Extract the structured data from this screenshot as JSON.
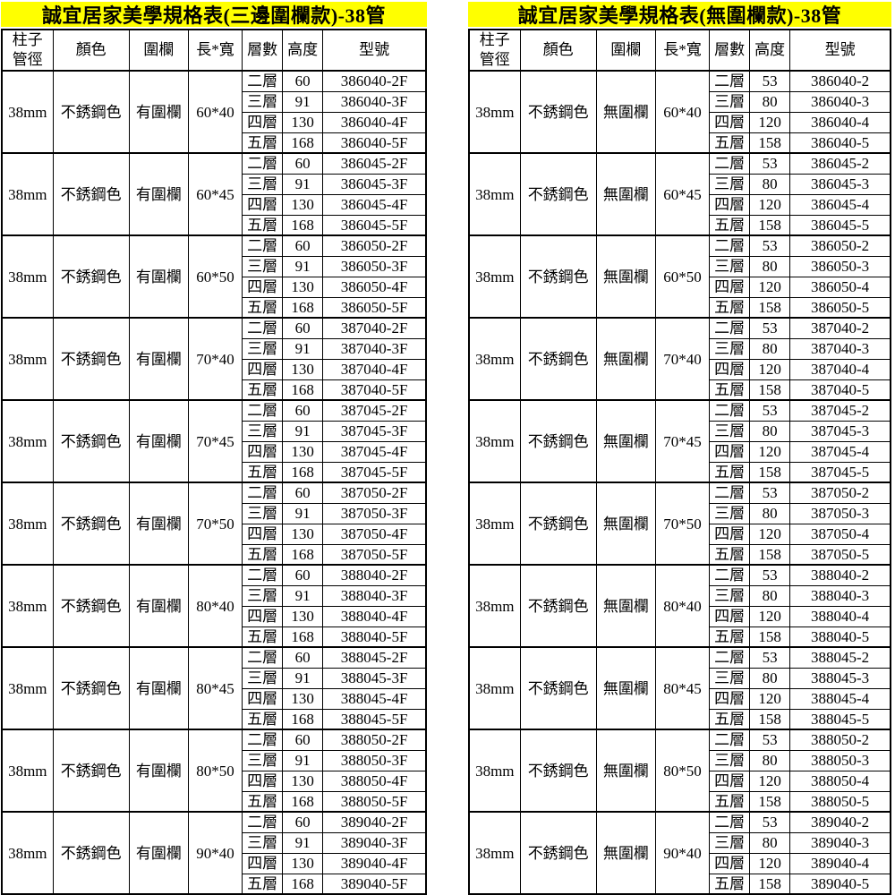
{
  "colors": {
    "title_bg": "#ffff00",
    "border": "#000000",
    "text": "#000000",
    "page_bg": "#ffffff"
  },
  "tables": [
    {
      "title": "誠宜居家美學規格表(三邊圍欄款)-38管",
      "headers": [
        "柱子管徑",
        "顏色",
        "圍欄",
        "長*寬",
        "層數",
        "高度",
        "型號"
      ],
      "groups": [
        {
          "pipe": "38mm",
          "color": "不銹鋼色",
          "fence": "有圍欄",
          "size": "60*40",
          "rows": [
            {
              "layers": "二層",
              "height": "60",
              "model": "386040-2F"
            },
            {
              "layers": "三層",
              "height": "91",
              "model": "386040-3F"
            },
            {
              "layers": "四層",
              "height": "130",
              "model": "386040-4F"
            },
            {
              "layers": "五層",
              "height": "168",
              "model": "386040-5F"
            }
          ]
        },
        {
          "pipe": "38mm",
          "color": "不銹鋼色",
          "fence": "有圍欄",
          "size": "60*45",
          "rows": [
            {
              "layers": "二層",
              "height": "60",
              "model": "386045-2F"
            },
            {
              "layers": "三層",
              "height": "91",
              "model": "386045-3F"
            },
            {
              "layers": "四層",
              "height": "130",
              "model": "386045-4F"
            },
            {
              "layers": "五層",
              "height": "168",
              "model": "386045-5F"
            }
          ]
        },
        {
          "pipe": "38mm",
          "color": "不銹鋼色",
          "fence": "有圍欄",
          "size": "60*50",
          "rows": [
            {
              "layers": "二層",
              "height": "60",
              "model": "386050-2F"
            },
            {
              "layers": "三層",
              "height": "91",
              "model": "386050-3F"
            },
            {
              "layers": "四層",
              "height": "130",
              "model": "386050-4F"
            },
            {
              "layers": "五層",
              "height": "168",
              "model": "386050-5F"
            }
          ]
        },
        {
          "pipe": "38mm",
          "color": "不銹鋼色",
          "fence": "有圍欄",
          "size": "70*40",
          "rows": [
            {
              "layers": "二層",
              "height": "60",
              "model": "387040-2F"
            },
            {
              "layers": "三層",
              "height": "91",
              "model": "387040-3F"
            },
            {
              "layers": "四層",
              "height": "130",
              "model": "387040-4F"
            },
            {
              "layers": "五層",
              "height": "168",
              "model": "387040-5F"
            }
          ]
        },
        {
          "pipe": "38mm",
          "color": "不銹鋼色",
          "fence": "有圍欄",
          "size": "70*45",
          "rows": [
            {
              "layers": "二層",
              "height": "60",
              "model": "387045-2F"
            },
            {
              "layers": "三層",
              "height": "91",
              "model": "387045-3F"
            },
            {
              "layers": "四層",
              "height": "130",
              "model": "387045-4F"
            },
            {
              "layers": "五層",
              "height": "168",
              "model": "387045-5F"
            }
          ]
        },
        {
          "pipe": "38mm",
          "color": "不銹鋼色",
          "fence": "有圍欄",
          "size": "70*50",
          "rows": [
            {
              "layers": "二層",
              "height": "60",
              "model": "387050-2F"
            },
            {
              "layers": "三層",
              "height": "91",
              "model": "387050-3F"
            },
            {
              "layers": "四層",
              "height": "130",
              "model": "387050-4F"
            },
            {
              "layers": "五層",
              "height": "168",
              "model": "387050-5F"
            }
          ]
        },
        {
          "pipe": "38mm",
          "color": "不銹鋼色",
          "fence": "有圍欄",
          "size": "80*40",
          "rows": [
            {
              "layers": "二層",
              "height": "60",
              "model": "388040-2F"
            },
            {
              "layers": "三層",
              "height": "91",
              "model": "388040-3F"
            },
            {
              "layers": "四層",
              "height": "130",
              "model": "388040-4F"
            },
            {
              "layers": "五層",
              "height": "168",
              "model": "388040-5F"
            }
          ]
        },
        {
          "pipe": "38mm",
          "color": "不銹鋼色",
          "fence": "有圍欄",
          "size": "80*45",
          "rows": [
            {
              "layers": "二層",
              "height": "60",
              "model": "388045-2F"
            },
            {
              "layers": "三層",
              "height": "91",
              "model": "388045-3F"
            },
            {
              "layers": "四層",
              "height": "130",
              "model": "388045-4F"
            },
            {
              "layers": "五層",
              "height": "168",
              "model": "388045-5F"
            }
          ]
        },
        {
          "pipe": "38mm",
          "color": "不銹鋼色",
          "fence": "有圍欄",
          "size": "80*50",
          "rows": [
            {
              "layers": "二層",
              "height": "60",
              "model": "388050-2F"
            },
            {
              "layers": "三層",
              "height": "91",
              "model": "388050-3F"
            },
            {
              "layers": "四層",
              "height": "130",
              "model": "388050-4F"
            },
            {
              "layers": "五層",
              "height": "168",
              "model": "388050-5F"
            }
          ]
        },
        {
          "pipe": "38mm",
          "color": "不銹鋼色",
          "fence": "有圍欄",
          "size": "90*40",
          "rows": [
            {
              "layers": "二層",
              "height": "60",
              "model": "389040-2F"
            },
            {
              "layers": "三層",
              "height": "91",
              "model": "389040-3F"
            },
            {
              "layers": "四層",
              "height": "130",
              "model": "389040-4F"
            },
            {
              "layers": "五層",
              "height": "168",
              "model": "389040-5F"
            }
          ]
        }
      ]
    },
    {
      "title": "誠宜居家美學規格表(無圍欄款)-38管",
      "headers": [
        "柱子管徑",
        "顏色",
        "圍欄",
        "長*寬",
        "層數",
        "高度",
        "型號"
      ],
      "groups": [
        {
          "pipe": "38mm",
          "color": "不銹鋼色",
          "fence": "無圍欄",
          "size": "60*40",
          "rows": [
            {
              "layers": "二層",
              "height": "53",
              "model": "386040-2"
            },
            {
              "layers": "三層",
              "height": "80",
              "model": "386040-3"
            },
            {
              "layers": "四層",
              "height": "120",
              "model": "386040-4"
            },
            {
              "layers": "五層",
              "height": "158",
              "model": "386040-5"
            }
          ]
        },
        {
          "pipe": "38mm",
          "color": "不銹鋼色",
          "fence": "無圍欄",
          "size": "60*45",
          "rows": [
            {
              "layers": "二層",
              "height": "53",
              "model": "386045-2"
            },
            {
              "layers": "三層",
              "height": "80",
              "model": "386045-3"
            },
            {
              "layers": "四層",
              "height": "120",
              "model": "386045-4"
            },
            {
              "layers": "五層",
              "height": "158",
              "model": "386045-5"
            }
          ]
        },
        {
          "pipe": "38mm",
          "color": "不銹鋼色",
          "fence": "無圍欄",
          "size": "60*50",
          "rows": [
            {
              "layers": "二層",
              "height": "53",
              "model": "386050-2"
            },
            {
              "layers": "三層",
              "height": "80",
              "model": "386050-3"
            },
            {
              "layers": "四層",
              "height": "120",
              "model": "386050-4"
            },
            {
              "layers": "五層",
              "height": "158",
              "model": "386050-5"
            }
          ]
        },
        {
          "pipe": "38mm",
          "color": "不銹鋼色",
          "fence": "無圍欄",
          "size": "70*40",
          "rows": [
            {
              "layers": "二層",
              "height": "53",
              "model": "387040-2"
            },
            {
              "layers": "三層",
              "height": "80",
              "model": "387040-3"
            },
            {
              "layers": "四層",
              "height": "120",
              "model": "387040-4"
            },
            {
              "layers": "五層",
              "height": "158",
              "model": "387040-5"
            }
          ]
        },
        {
          "pipe": "38mm",
          "color": "不銹鋼色",
          "fence": "無圍欄",
          "size": "70*45",
          "rows": [
            {
              "layers": "二層",
              "height": "53",
              "model": "387045-2"
            },
            {
              "layers": "三層",
              "height": "80",
              "model": "387045-3"
            },
            {
              "layers": "四層",
              "height": "120",
              "model": "387045-4"
            },
            {
              "layers": "五層",
              "height": "158",
              "model": "387045-5"
            }
          ]
        },
        {
          "pipe": "38mm",
          "color": "不銹鋼色",
          "fence": "無圍欄",
          "size": "70*50",
          "rows": [
            {
              "layers": "二層",
              "height": "53",
              "model": "387050-2"
            },
            {
              "layers": "三層",
              "height": "80",
              "model": "387050-3"
            },
            {
              "layers": "四層",
              "height": "120",
              "model": "387050-4"
            },
            {
              "layers": "五層",
              "height": "158",
              "model": "387050-5"
            }
          ]
        },
        {
          "pipe": "38mm",
          "color": "不銹鋼色",
          "fence": "無圍欄",
          "size": "80*40",
          "rows": [
            {
              "layers": "二層",
              "height": "53",
              "model": "388040-2"
            },
            {
              "layers": "三層",
              "height": "80",
              "model": "388040-3"
            },
            {
              "layers": "四層",
              "height": "120",
              "model": "388040-4"
            },
            {
              "layers": "五層",
              "height": "158",
              "model": "388040-5"
            }
          ]
        },
        {
          "pipe": "38mm",
          "color": "不銹鋼色",
          "fence": "無圍欄",
          "size": "80*45",
          "rows": [
            {
              "layers": "二層",
              "height": "53",
              "model": "388045-2"
            },
            {
              "layers": "三層",
              "height": "80",
              "model": "388045-3"
            },
            {
              "layers": "四層",
              "height": "120",
              "model": "388045-4"
            },
            {
              "layers": "五層",
              "height": "158",
              "model": "388045-5"
            }
          ]
        },
        {
          "pipe": "38mm",
          "color": "不銹鋼色",
          "fence": "無圍欄",
          "size": "80*50",
          "rows": [
            {
              "layers": "二層",
              "height": "53",
              "model": "388050-2"
            },
            {
              "layers": "三層",
              "height": "80",
              "model": "388050-3"
            },
            {
              "layers": "四層",
              "height": "120",
              "model": "388050-4"
            },
            {
              "layers": "五層",
              "height": "158",
              "model": "388050-5"
            }
          ]
        },
        {
          "pipe": "38mm",
          "color": "不銹鋼色",
          "fence": "無圍欄",
          "size": "90*40",
          "rows": [
            {
              "layers": "二層",
              "height": "53",
              "model": "389040-2"
            },
            {
              "layers": "三層",
              "height": "80",
              "model": "389040-3"
            },
            {
              "layers": "四層",
              "height": "120",
              "model": "389040-4"
            },
            {
              "layers": "五層",
              "height": "158",
              "model": "389040-5"
            }
          ]
        }
      ]
    }
  ]
}
